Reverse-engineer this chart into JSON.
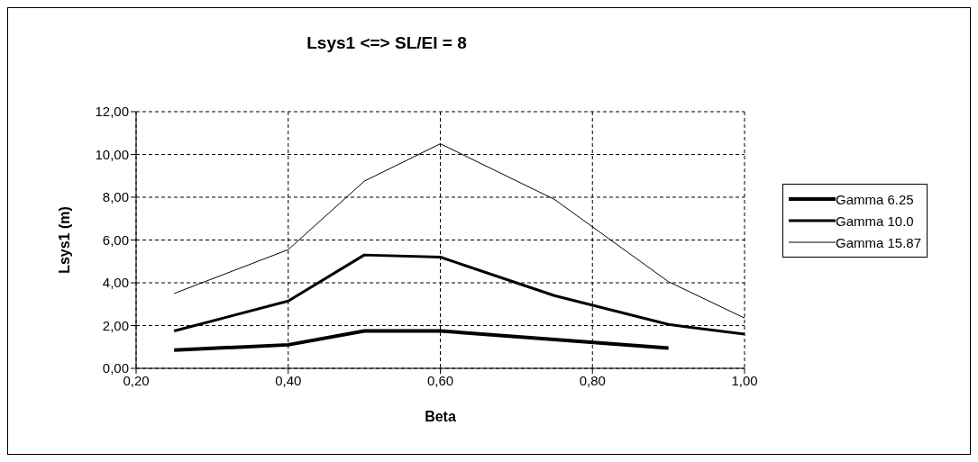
{
  "chart_data": {
    "type": "line",
    "title": "Lsys1 <=> SL/EI = 8",
    "xlabel": "Beta",
    "ylabel": "Lsys1 (m)",
    "x": [
      0.25,
      0.4,
      0.5,
      0.6,
      0.75,
      0.9,
      1.0
    ],
    "series": [
      {
        "name": "Gamma 6.25",
        "color": "#000000",
        "values": [
          0.85,
          1.1,
          1.75,
          1.75,
          1.35,
          0.95,
          null
        ]
      },
      {
        "name": "Gamma 10.0",
        "color": "#000000",
        "values": [
          1.75,
          3.15,
          5.3,
          5.2,
          3.4,
          2.05,
          1.6
        ]
      },
      {
        "name": "Gamma 15.87",
        "color": "#000000",
        "values": [
          3.5,
          5.55,
          8.75,
          10.5,
          7.9,
          4.05,
          2.35
        ]
      }
    ],
    "xlim": [
      0.2,
      1.0
    ],
    "xticks": [
      {
        "value": 0.2,
        "label": "0,20"
      },
      {
        "value": 0.4,
        "label": "0,40"
      },
      {
        "value": 0.6,
        "label": "0,60"
      },
      {
        "value": 0.8,
        "label": "0,80"
      },
      {
        "value": 1.0,
        "label": "1,00"
      }
    ],
    "ylim": [
      0,
      12
    ],
    "yticks": [
      {
        "value": 0,
        "label": "0,00"
      },
      {
        "value": 2,
        "label": "2,00"
      },
      {
        "value": 4,
        "label": "4,00"
      },
      {
        "value": 6,
        "label": "6,00"
      },
      {
        "value": 8,
        "label": "8,00"
      },
      {
        "value": 10,
        "label": "10,00"
      },
      {
        "value": 12,
        "label": "12,00"
      }
    ],
    "grid": true,
    "legend": "right",
    "marker": "none",
    "line_style": "solid"
  }
}
